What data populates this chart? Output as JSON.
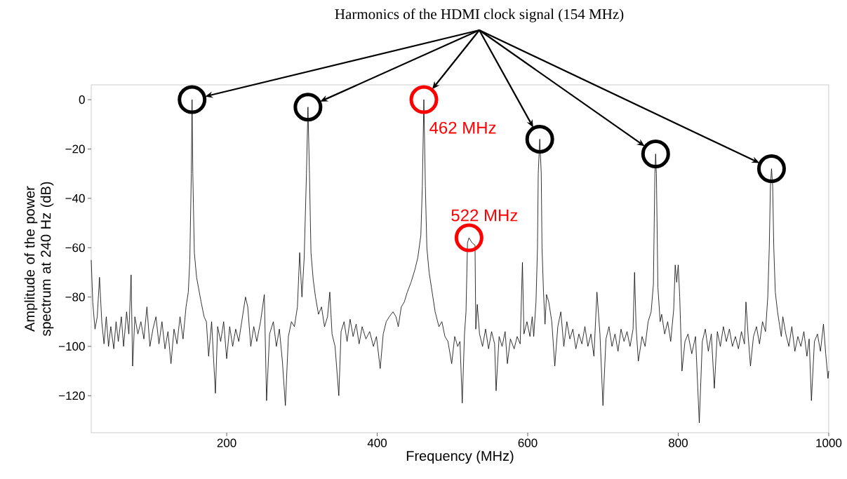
{
  "chart_data": {
    "type": "line",
    "title": "Harmonics of the HDMI clock signal (154 MHz)",
    "xlabel": "Frequency (MHz)",
    "ylabel": "Amplitude of the power spectrum at 240 Hz (dB)",
    "xlim": [
      20,
      1000
    ],
    "ylim": [
      -135,
      6
    ],
    "xticks": [
      200,
      400,
      600,
      800,
      1000
    ],
    "yticks": [
      0,
      {
        "value": -20,
        "label": "−20"
      },
      {
        "value": -40,
        "label": "−40"
      },
      {
        "value": -60,
        "label": "−60"
      },
      {
        "value": -80,
        "label": "−80"
      },
      {
        "value": -100,
        "label": "−100"
      },
      {
        "value": -120,
        "label": "−120"
      }
    ],
    "annotations": [
      {
        "text": "462 MHz",
        "x": 462,
        "y": 0
      },
      {
        "text": "522 MHz",
        "x": 522,
        "y": -56
      }
    ],
    "series": [
      {
        "color": "#000000",
        "x": [
          20,
          22,
          25,
          28,
          31,
          34,
          37,
          40,
          43,
          46,
          50,
          53,
          56,
          60,
          63,
          67,
          70,
          73,
          75,
          78,
          82,
          86,
          90,
          94,
          98,
          102,
          106,
          110,
          114,
          118,
          122,
          126,
          130,
          134,
          138,
          142,
          146,
          149,
          151,
          153,
          154,
          155,
          157,
          160,
          163,
          166,
          170,
          173,
          176,
          180,
          185,
          188,
          192,
          196,
          200,
          204,
          208,
          212,
          216,
          220,
          225,
          228,
          232,
          236,
          240,
          245,
          250,
          253,
          257,
          262,
          266,
          270,
          274,
          278,
          282,
          286,
          290,
          294,
          297,
          300,
          303,
          306,
          308,
          310,
          312,
          315,
          318,
          322,
          326,
          330,
          334,
          337,
          340,
          344,
          349,
          352,
          356,
          360,
          364,
          368,
          372,
          376,
          380,
          385,
          390,
          395,
          399,
          404,
          408,
          412,
          416,
          421,
          425,
          428,
          432,
          436,
          440,
          445,
          450,
          454,
          458,
          460,
          462,
          464,
          466,
          469,
          472,
          477,
          482,
          486,
          490,
          494,
          499,
          503,
          507,
          510,
          513,
          516,
          518,
          520,
          522,
          526,
          530,
          531,
          533,
          536,
          540,
          544,
          548,
          552,
          556,
          558,
          562,
          566,
          570,
          573,
          577,
          582,
          586,
          590,
          593,
          595,
          599,
          603,
          606,
          608,
          611,
          613,
          614,
          616,
          618,
          619,
          621,
          623,
          625,
          628,
          632,
          636,
          640,
          644,
          648,
          652,
          656,
          660,
          664,
          668,
          672,
          676,
          680,
          684,
          688,
          692,
          696,
          700,
          704,
          708,
          712,
          716,
          720,
          724,
          728,
          732,
          736,
          740,
          742,
          744,
          747,
          752,
          756,
          760,
          764,
          767,
          769,
          770,
          771,
          773,
          776,
          778,
          782,
          786,
          790,
          794,
          796,
          798,
          800,
          802,
          805,
          809,
          813,
          818,
          823,
          828,
          832,
          836,
          840,
          844,
          848,
          852,
          856,
          860,
          864,
          868,
          872,
          876,
          880,
          884,
          888,
          890,
          893,
          896,
          900,
          904,
          908,
          912,
          916,
          919,
          921,
          922.5,
          924,
          925.5,
          927,
          929,
          932,
          934,
          937,
          939,
          943,
          947,
          951,
          955,
          959,
          963,
          967,
          971,
          974,
          977,
          981,
          985,
          989,
          993,
          996,
          999,
          1000
        ],
        "values": [
          -65,
          -82,
          -93,
          -88,
          -72,
          -90,
          -99,
          -88,
          -100,
          -92,
          -101,
          -90,
          -98,
          -88,
          -100,
          -86,
          -95,
          -71,
          -108,
          -88,
          -95,
          -90,
          -97,
          -84,
          -100,
          -93,
          -88,
          -99,
          -90,
          -101,
          -94,
          -107,
          -93,
          -99,
          -88,
          -97,
          -84,
          -78,
          -65,
          -30,
          0,
          -30,
          -62,
          -72,
          -77,
          -82,
          -88,
          -90,
          -104,
          -90,
          -119,
          -92,
          -98,
          -90,
          -105,
          -92,
          -100,
          -93,
          -98,
          -90,
          -80,
          -84,
          -100,
          -92,
          -98,
          -90,
          -79,
          -122,
          -95,
          -90,
          -100,
          -93,
          -106,
          -124,
          -96,
          -90,
          -92,
          -84,
          -62,
          -80,
          -64,
          -30,
          -3,
          -30,
          -62,
          -73,
          -80,
          -87,
          -84,
          -92,
          -88,
          -78,
          -95,
          -100,
          -120,
          -94,
          -90,
          -98,
          -89,
          -96,
          -91,
          -99,
          -92,
          -97,
          -94,
          -100,
          -96,
          -109,
          -95,
          -90,
          -88,
          -86,
          -88,
          -92,
          -84,
          -82,
          -78,
          -74,
          -69,
          -64,
          -55,
          -35,
          0,
          -35,
          -60,
          -70,
          -76,
          -86,
          -92,
          -90,
          -96,
          -98,
          -107,
          -96,
          -100,
          -98,
          -123,
          -95,
          -86,
          -58,
          -56,
          -58,
          -59,
          -93,
          -83,
          -95,
          -100,
          -93,
          -101,
          -94,
          -99,
          -118,
          -96,
          -100,
          -94,
          -107,
          -97,
          -101,
          -96,
          -99,
          -66,
          -95,
          -90,
          -96,
          -88,
          -96,
          -82,
          -60,
          -30,
          -16,
          -30,
          -60,
          -78,
          -91,
          -79,
          -82,
          -90,
          -108,
          -92,
          -86,
          -100,
          -90,
          -97,
          -93,
          -101,
          -95,
          -99,
          -92,
          -100,
          -95,
          -104,
          -78,
          -95,
          -124,
          -97,
          -92,
          -100,
          -95,
          -102,
          -93,
          -98,
          -94,
          -100,
          -93,
          -70,
          -92,
          -106,
          -96,
          -100,
          -90,
          -86,
          -75,
          -30,
          -22,
          -30,
          -76,
          -90,
          -87,
          -95,
          -90,
          -98,
          -85,
          -67,
          -74,
          -67,
          -80,
          -110,
          -98,
          -95,
          -103,
          -96,
          -131,
          -98,
          -93,
          -102,
          -95,
          -117,
          -94,
          -100,
          -92,
          -98,
          -93,
          -100,
          -96,
          -101,
          -94,
          -99,
          -82,
          -96,
          -108,
          -96,
          -92,
          -99,
          -90,
          -94,
          -80,
          -60,
          -35,
          -28,
          -35,
          -60,
          -78,
          -86,
          -90,
          -96,
          -88,
          -95,
          -100,
          -92,
          -102,
          -96,
          -100,
          -94,
          -104,
          -97,
          -122,
          -98,
          -95,
          -102,
          -91,
          -103,
          -113,
          -110
        ]
      }
    ]
  }
}
